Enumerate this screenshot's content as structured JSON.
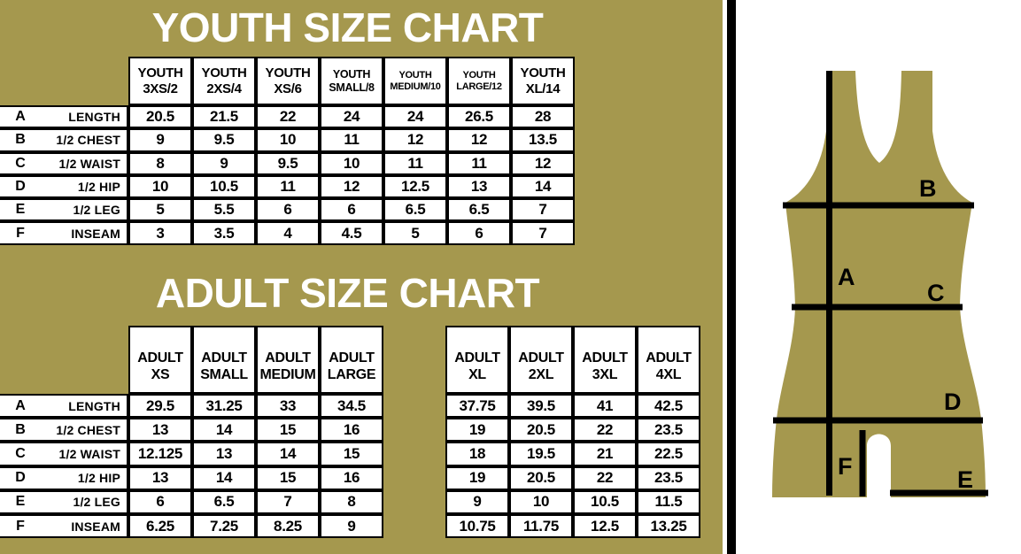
{
  "colors": {
    "gold": "#a5984e",
    "black": "#000000",
    "white": "#ffffff"
  },
  "chart_data": [
    {
      "type": "table",
      "title": "YOUTH SIZE CHART",
      "columns": [
        {
          "line1": "YOUTH",
          "line2": "3XS/2"
        },
        {
          "line1": "YOUTH",
          "line2": "2XS/4"
        },
        {
          "line1": "YOUTH",
          "line2": "XS/6"
        },
        {
          "line1": "YOUTH",
          "line2": "SMALL/8"
        },
        {
          "line1": "YOUTH",
          "line2": "MEDIUM/10"
        },
        {
          "line1": "YOUTH",
          "line2": "LARGE/12"
        },
        {
          "line1": "YOUTH",
          "line2": "XL/14"
        }
      ],
      "rows": [
        {
          "letter": "A",
          "label": "LENGTH",
          "values": [
            "20.5",
            "21.5",
            "22",
            "24",
            "24",
            "26.5",
            "28"
          ]
        },
        {
          "letter": "B",
          "label": "1/2 CHEST",
          "values": [
            "9",
            "9.5",
            "10",
            "11",
            "12",
            "12",
            "13.5"
          ]
        },
        {
          "letter": "C",
          "label": "1/2 WAIST",
          "values": [
            "8",
            "9",
            "9.5",
            "10",
            "11",
            "11",
            "12"
          ]
        },
        {
          "letter": "D",
          "label": "1/2 HIP",
          "values": [
            "10",
            "10.5",
            "11",
            "12",
            "12.5",
            "13",
            "14"
          ]
        },
        {
          "letter": "E",
          "label": "1/2 LEG",
          "values": [
            "5",
            "5.5",
            "6",
            "6",
            "6.5",
            "6.5",
            "7"
          ]
        },
        {
          "letter": "F",
          "label": "INSEAM",
          "values": [
            "3",
            "3.5",
            "4",
            "4.5",
            "5",
            "6",
            "7"
          ]
        }
      ]
    },
    {
      "type": "table",
      "title": "ADULT SIZE CHART",
      "column_groups": [
        [
          {
            "line1": "ADULT",
            "line2": "XS"
          },
          {
            "line1": "ADULT",
            "line2": "SMALL"
          },
          {
            "line1": "ADULT",
            "line2": "MEDIUM"
          },
          {
            "line1": "ADULT",
            "line2": "LARGE"
          }
        ],
        [
          {
            "line1": "ADULT",
            "line2": "XL"
          },
          {
            "line1": "ADULT",
            "line2": "2XL"
          },
          {
            "line1": "ADULT",
            "line2": "3XL"
          },
          {
            "line1": "ADULT",
            "line2": "4XL"
          }
        ]
      ],
      "rows": [
        {
          "letter": "A",
          "label": "LENGTH",
          "group1": [
            "29.5",
            "31.25",
            "33",
            "34.5"
          ],
          "group2": [
            "37.75",
            "39.5",
            "41",
            "42.5"
          ]
        },
        {
          "letter": "B",
          "label": "1/2 CHEST",
          "group1": [
            "13",
            "14",
            "15",
            "16"
          ],
          "group2": [
            "19",
            "20.5",
            "22",
            "23.5"
          ]
        },
        {
          "letter": "C",
          "label": "1/2 WAIST",
          "group1": [
            "12.125",
            "13",
            "14",
            "15"
          ],
          "group2": [
            "18",
            "19.5",
            "21",
            "22.5"
          ]
        },
        {
          "letter": "D",
          "label": "1/2 HIP",
          "group1": [
            "13",
            "14",
            "15",
            "16"
          ],
          "group2": [
            "19",
            "20.5",
            "22",
            "23.5"
          ]
        },
        {
          "letter": "E",
          "label": "1/2 LEG",
          "group1": [
            "6",
            "6.5",
            "7",
            "8"
          ],
          "group2": [
            "9",
            "10",
            "10.5",
            "11.5"
          ]
        },
        {
          "letter": "F",
          "label": "INSEAM",
          "group1": [
            "6.25",
            "7.25",
            "8.25",
            "9"
          ],
          "group2": [
            "10.75",
            "11.75",
            "12.5",
            "13.25"
          ]
        }
      ]
    }
  ],
  "diagram": {
    "labels": [
      "A",
      "B",
      "C",
      "D",
      "E",
      "F"
    ]
  }
}
